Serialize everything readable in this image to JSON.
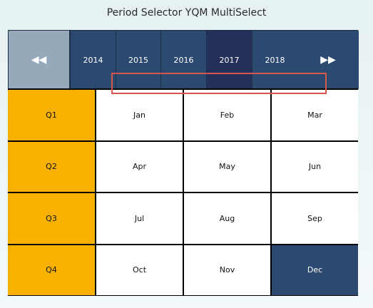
{
  "title": "Period Selector YQM MultiSelect",
  "nav": {
    "prev": "◀◀",
    "next": "▶▶"
  },
  "years": [
    "2014",
    "2015",
    "2016",
    "2017",
    "2018"
  ],
  "selected_year": "2017",
  "quarters": [
    "Q1",
    "Q2",
    "Q3",
    "Q4"
  ],
  "months": [
    [
      "Jan",
      "Feb",
      "Mar"
    ],
    [
      "Apr",
      "May",
      "Jun"
    ],
    [
      "Jul",
      "Aug",
      "Sep"
    ],
    [
      "Oct",
      "Nov",
      "Dec"
    ]
  ],
  "selected_month": "Dec",
  "colors": {
    "header_bg": "#2c4a70",
    "selected_year_bg": "#24305a",
    "nav_prev_bg": "#96a9bb",
    "quarter_bg": "#f8b100",
    "highlight_border": "#d9534f"
  }
}
